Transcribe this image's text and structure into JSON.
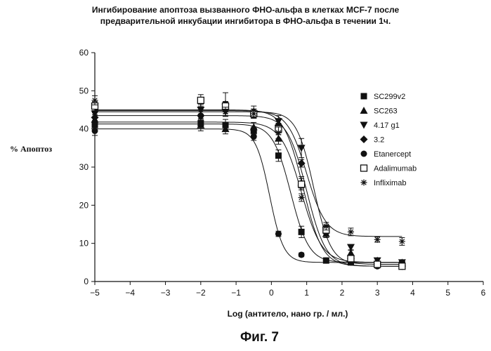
{
  "chart_data": {
    "type": "scatter",
    "title_line1": "Ингибирование апоптоза вызванного ФНО-альфа в клетках MCF-7 после",
    "title_line2": "предварительной инкубации ингибитора в ФНО-альфа в течении 1ч.",
    "xlabel": "Log (антитело, нано гр. / мл.)",
    "ylabel": "% Апоптоз",
    "caption": "Фиг. 7",
    "xlim": [
      -5,
      6
    ],
    "ylim": [
      0,
      60
    ],
    "xticks": [
      "-5",
      "-4",
      "-3",
      "-2",
      "-1",
      "0",
      "1",
      "2",
      "3",
      "4",
      "5",
      "6"
    ],
    "yticks": [
      "0",
      "10",
      "20",
      "30",
      "40",
      "50",
      "60"
    ],
    "legend_position": "right",
    "x": [
      -5,
      -2,
      -1.3,
      -0.5,
      0.2,
      0.85,
      1.55,
      2.25,
      3.0,
      3.7
    ],
    "series": [
      {
        "name": "SC299v2",
        "marker": "filled-square",
        "top": 41.3,
        "bottom": 5.0,
        "ec50": 0.55,
        "hill": 1.7,
        "values": [
          41.0,
          41.5,
          41.0,
          39.5,
          33.0,
          13.0,
          5.5,
          5.0,
          4.5,
          4.5
        ],
        "err": [
          1.2,
          1.2,
          1.5,
          1.0,
          1.5,
          1.5,
          0.7,
          0.5,
          0.5,
          0.5
        ]
      },
      {
        "name": "SC263",
        "marker": "filled-triangle-up",
        "top": 41.8,
        "bottom": 5.0,
        "ec50": 0.85,
        "hill": 1.5,
        "values": [
          42.5,
          41.0,
          40.0,
          40.5,
          37.5,
          26.0,
          12.5,
          7.5,
          5.5,
          5.0
        ],
        "err": [
          1.2,
          1.5,
          1.3,
          1.2,
          1.5,
          1.5,
          1.0,
          0.7,
          0.5,
          0.5
        ]
      },
      {
        "name": "4.17 g1",
        "marker": "filled-triangle-down",
        "top": 44.5,
        "bottom": 4.5,
        "ec50": 1.2,
        "hill": 1.8,
        "values": [
          44.0,
          45.0,
          44.5,
          44.0,
          42.0,
          35.0,
          13.5,
          9.0,
          5.5,
          5.0
        ],
        "err": [
          1.2,
          1.5,
          1.2,
          1.2,
          1.5,
          2.5,
          1.0,
          0.7,
          0.5,
          0.5
        ]
      },
      {
        "name": "3.2",
        "marker": "filled-diamond",
        "top": 43.5,
        "bottom": 4.0,
        "ec50": 1.0,
        "hill": 1.6,
        "values": [
          43.0,
          43.5,
          46.5,
          44.5,
          41.0,
          31.0,
          14.0,
          6.0,
          4.5,
          4.0
        ],
        "err": [
          1.2,
          1.5,
          3.0,
          1.5,
          1.5,
          1.0,
          0.7,
          0.5,
          0.5,
          0.5
        ]
      },
      {
        "name": "Etanercept",
        "marker": "filled-circle",
        "top": 40.0,
        "bottom": 5.0,
        "ec50": -0.05,
        "hill": 2.2,
        "values": [
          39.5,
          43.5,
          45.5,
          38.0,
          12.5,
          7.0,
          5.5,
          5.0,
          4.0,
          4.0
        ],
        "err": [
          1.2,
          1.5,
          1.5,
          1.0,
          0.7,
          0.5,
          0.5,
          0.5,
          0.5,
          0.5
        ]
      },
      {
        "name": "Adalimumab",
        "marker": "open-square",
        "top": 45.0,
        "bottom": 4.0,
        "ec50": 0.9,
        "hill": 1.6,
        "values": [
          46.0,
          47.5,
          46.0,
          44.0,
          40.0,
          25.5,
          13.5,
          6.0,
          4.5,
          4.0
        ],
        "err": [
          1.2,
          1.5,
          1.2,
          1.2,
          1.5,
          1.5,
          1.0,
          0.7,
          0.5,
          0.5
        ]
      },
      {
        "name": "Infliximab",
        "marker": "asterisk",
        "top": 44.8,
        "bottom": 11.8,
        "ec50": 1.0,
        "hill": 1.6,
        "values": [
          47.5,
          45.0,
          44.5,
          44.0,
          39.0,
          22.0,
          14.5,
          13.0,
          11.0,
          10.5
        ],
        "err": [
          1.2,
          1.5,
          1.2,
          1.2,
          1.5,
          1.0,
          1.0,
          1.0,
          0.7,
          1.0
        ]
      }
    ]
  }
}
